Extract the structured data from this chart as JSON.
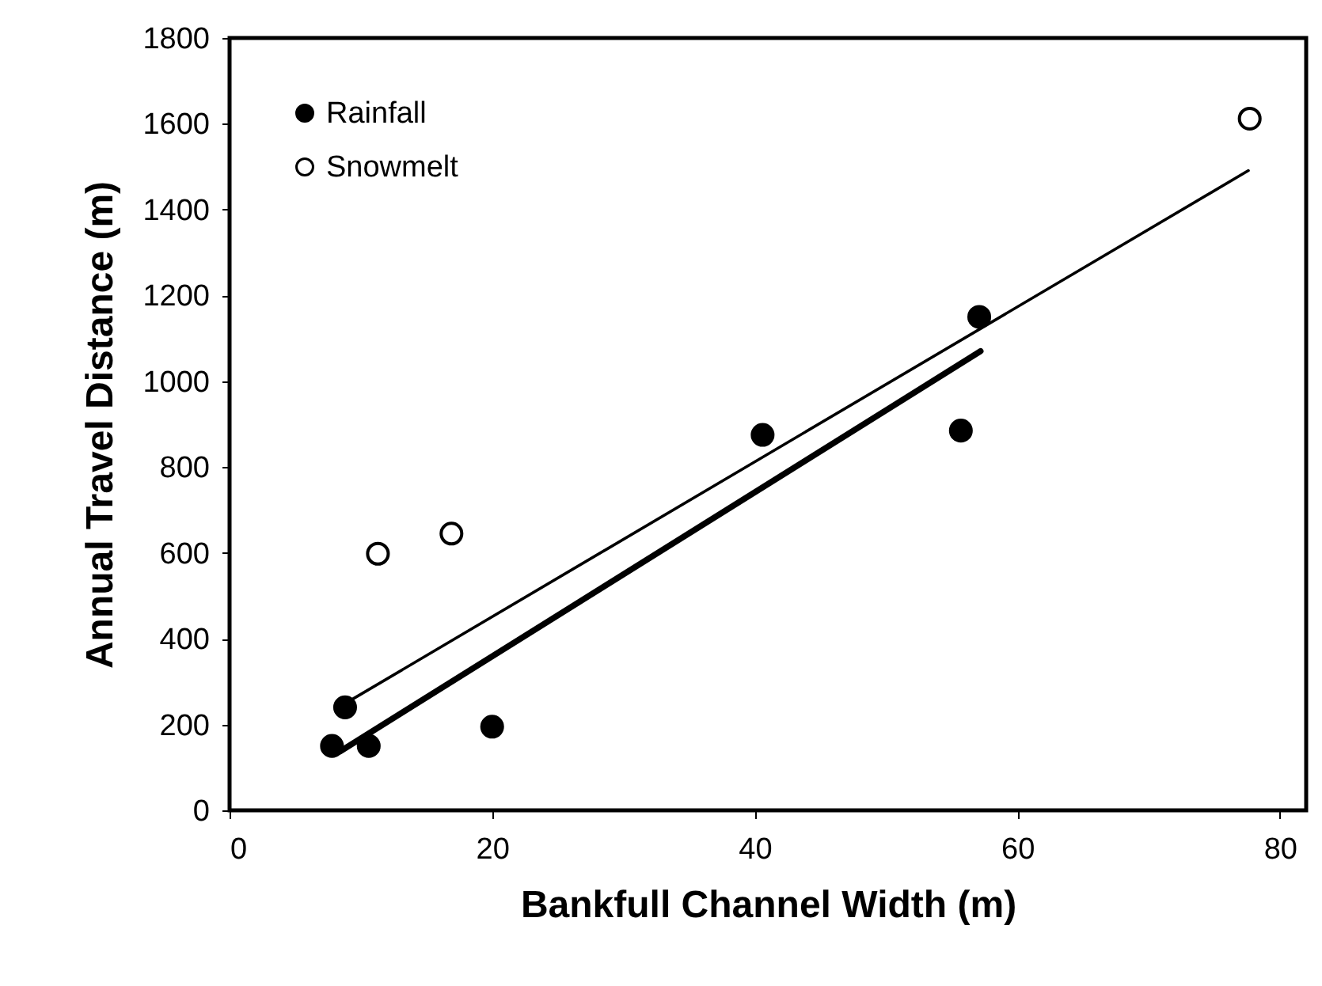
{
  "chart_data": {
    "type": "scatter",
    "xlabel": "Bankfull Channel Width (m)",
    "ylabel": "Annual Travel Distance (m)",
    "xlim": [
      0,
      82
    ],
    "xticks": [
      0,
      20,
      40,
      60,
      80
    ],
    "ylim": [
      0,
      1800
    ],
    "yticks": [
      0,
      200,
      400,
      600,
      800,
      1000,
      1200,
      1400,
      1600,
      1800
    ],
    "grid": false,
    "legend": "top left",
    "series": [
      {
        "name": "Rainfall",
        "color": "#000000",
        "marker": "circle",
        "x": [
          7.8,
          8.8,
          10.6,
          20,
          40.6,
          55.7,
          57.1
        ],
        "values": [
          150,
          240,
          150,
          195,
          875,
          885,
          1150
        ]
      },
      {
        "name": "Snowmelt",
        "color": "#ffffff",
        "marker": "circle",
        "x": [
          11.3,
          16.9,
          77.7
        ],
        "values": [
          598,
          645,
          1612
        ]
      },
      {
        "type": "line",
        "color": "#000000",
        "line_style": "solid",
        "marker": "none",
        "x": [
          9.3,
          77.6
        ],
        "values": [
          258,
          1491
        ]
      },
      {
        "type": "line",
        "color": "#000000",
        "line_style": "solid",
        "marker": "none",
        "x": [
          8.4,
          57.2
        ],
        "values": [
          137,
          1070
        ]
      }
    ]
  }
}
